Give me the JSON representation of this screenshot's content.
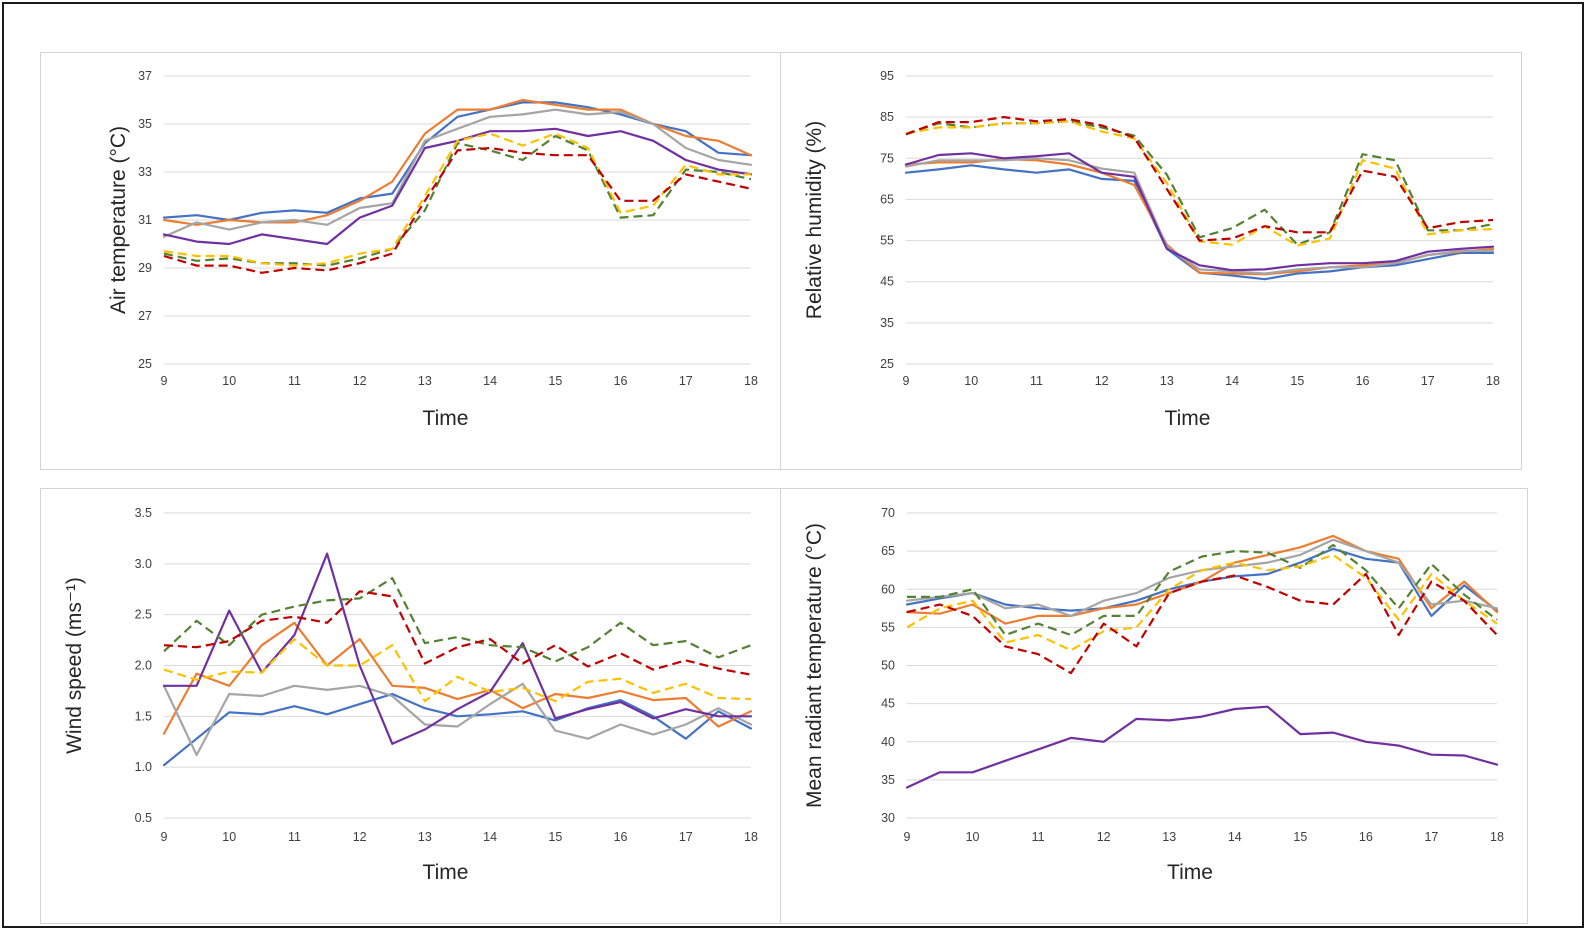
{
  "chart_data": [
    {
      "type": "line",
      "ylabel": "Air temperature (°C)",
      "xlabel": "Time",
      "ylim": [
        25,
        37
      ],
      "yticks": [
        "25",
        "27",
        "29",
        "31",
        "33",
        "35",
        "37"
      ],
      "xticks": [
        "9",
        "10",
        "11",
        "12",
        "13",
        "14",
        "15",
        "16",
        "17",
        "18"
      ],
      "x": [
        9,
        9.5,
        10,
        10.5,
        11,
        11.5,
        12,
        12.5,
        13,
        13.5,
        14,
        14.5,
        15,
        15.5,
        16,
        16.5,
        17,
        17.5,
        18
      ],
      "series": [
        {
          "name": "blue",
          "color": "#4472C4",
          "dashed": false,
          "values": [
            31.1,
            31.2,
            31.0,
            31.3,
            31.4,
            31.3,
            31.9,
            32.1,
            34.2,
            35.3,
            35.6,
            35.9,
            35.9,
            35.7,
            35.4,
            35.0,
            34.7,
            33.8,
            33.7
          ]
        },
        {
          "name": "orange",
          "color": "#ED7D31",
          "dashed": false,
          "values": [
            31.0,
            30.8,
            31.0,
            30.9,
            30.9,
            31.2,
            31.8,
            32.6,
            34.6,
            35.6,
            35.6,
            36.0,
            35.8,
            35.6,
            35.6,
            35.0,
            34.5,
            34.3,
            33.7
          ]
        },
        {
          "name": "gray",
          "color": "#A5A5A5",
          "dashed": false,
          "values": [
            30.3,
            30.9,
            30.6,
            30.9,
            31.0,
            30.8,
            31.5,
            31.7,
            34.3,
            34.8,
            35.3,
            35.4,
            35.6,
            35.4,
            35.5,
            35.0,
            34.0,
            33.5,
            33.3
          ]
        },
        {
          "name": "purple",
          "color": "#7030A0",
          "dashed": false,
          "values": [
            30.4,
            30.1,
            30.0,
            30.4,
            30.2,
            30.0,
            31.1,
            31.6,
            34.0,
            34.3,
            34.7,
            34.7,
            34.8,
            34.5,
            34.7,
            34.3,
            33.5,
            33.1,
            32.9
          ]
        },
        {
          "name": "green-dashed",
          "color": "#548235",
          "dashed": true,
          "values": [
            29.6,
            29.3,
            29.4,
            29.2,
            29.2,
            29.1,
            29.4,
            29.8,
            31.4,
            34.2,
            33.9,
            33.5,
            34.5,
            33.9,
            31.1,
            31.2,
            33.1,
            33.0,
            32.7
          ]
        },
        {
          "name": "yellow-dashed",
          "color": "#FFC000",
          "dashed": true,
          "values": [
            29.7,
            29.5,
            29.5,
            29.2,
            29.1,
            29.2,
            29.6,
            29.8,
            32.0,
            34.3,
            34.6,
            34.1,
            34.6,
            34.0,
            31.3,
            31.6,
            33.3,
            32.9,
            32.9
          ]
        },
        {
          "name": "red-dashed",
          "color": "#C00000",
          "dashed": true,
          "values": [
            29.5,
            29.1,
            29.1,
            28.8,
            29.0,
            28.9,
            29.2,
            29.6,
            31.8,
            33.9,
            34.0,
            33.8,
            33.7,
            33.7,
            31.8,
            31.8,
            32.9,
            32.6,
            32.3
          ]
        }
      ]
    },
    {
      "type": "line",
      "ylabel": "Relative humidity (%)",
      "xlabel": "Time",
      "ylim": [
        25,
        95
      ],
      "yticks": [
        "25",
        "35",
        "45",
        "55",
        "65",
        "75",
        "85",
        "95"
      ],
      "xticks": [
        "9",
        "10",
        "11",
        "12",
        "13",
        "14",
        "15",
        "16",
        "17",
        "18"
      ],
      "x": [
        9,
        9.5,
        10,
        10.5,
        11,
        11.5,
        12,
        12.5,
        13,
        13.5,
        14,
        14.5,
        15,
        15.5,
        16,
        16.5,
        17,
        17.5,
        18
      ],
      "series": [
        {
          "name": "blue",
          "color": "#4472C4",
          "dashed": false,
          "values": [
            71.5,
            72.3,
            73.3,
            72.3,
            71.5,
            72.3,
            70.0,
            69.5,
            53.0,
            47.2,
            46.5,
            45.6,
            47.0,
            47.5,
            48.5,
            49.0,
            50.5,
            52.0,
            52.0
          ]
        },
        {
          "name": "orange",
          "color": "#ED7D31",
          "dashed": false,
          "values": [
            73.5,
            74.0,
            74.0,
            74.8,
            74.5,
            73.5,
            71.5,
            68.5,
            54.0,
            47.2,
            47.0,
            46.8,
            47.5,
            48.5,
            49.0,
            49.5,
            51.5,
            52.3,
            53.0
          ]
        },
        {
          "name": "gray",
          "color": "#A5A5A5",
          "dashed": false,
          "values": [
            73.0,
            74.5,
            74.5,
            74.5,
            75.0,
            74.5,
            72.5,
            71.5,
            53.5,
            48.0,
            47.5,
            47.0,
            48.0,
            48.5,
            48.5,
            49.5,
            51.5,
            52.5,
            52.5
          ]
        },
        {
          "name": "purple",
          "color": "#7030A0",
          "dashed": false,
          "values": [
            73.5,
            75.8,
            76.2,
            75.0,
            75.5,
            76.2,
            71.5,
            70.5,
            53.0,
            49.0,
            47.8,
            48.0,
            49.0,
            49.5,
            49.5,
            50.0,
            52.3,
            53.0,
            53.5
          ]
        },
        {
          "name": "green-dashed",
          "color": "#548235",
          "dashed": true,
          "values": [
            81.0,
            83.5,
            82.5,
            83.5,
            83.5,
            84.0,
            82.5,
            80.5,
            71.0,
            55.8,
            58.0,
            62.5,
            54.0,
            57.0,
            76.0,
            74.5,
            57.5,
            57.5,
            59.0
          ]
        },
        {
          "name": "yellow-dashed",
          "color": "#FFC000",
          "dashed": true,
          "values": [
            81.0,
            82.5,
            82.5,
            83.5,
            83.5,
            84.0,
            81.5,
            79.8,
            69.0,
            54.8,
            54.0,
            58.5,
            53.8,
            55.5,
            74.5,
            72.5,
            56.5,
            57.5,
            57.8
          ]
        },
        {
          "name": "red-dashed",
          "color": "#C00000",
          "dashed": true,
          "values": [
            80.8,
            83.8,
            83.8,
            85.0,
            84.0,
            84.5,
            83.0,
            80.0,
            67.5,
            55.0,
            55.5,
            58.5,
            57.0,
            57.0,
            72.0,
            70.5,
            58.0,
            59.5,
            60.0
          ]
        }
      ]
    },
    {
      "type": "line",
      "ylabel": "Wind speed (ms⁻¹)",
      "xlabel": "Time",
      "ylim": [
        0.5,
        3.5
      ],
      "yticks": [
        "0.5",
        "1.0",
        "1.5",
        "2.0",
        "2.5",
        "3.0",
        "3.5"
      ],
      "xticks": [
        "9",
        "10",
        "11",
        "12",
        "13",
        "14",
        "15",
        "16",
        "17",
        "18"
      ],
      "x": [
        9,
        9.5,
        10,
        10.5,
        11,
        11.5,
        12,
        12.5,
        13,
        13.5,
        14,
        14.5,
        15,
        15.5,
        16,
        16.5,
        17,
        17.5,
        18
      ],
      "series": [
        {
          "name": "blue",
          "color": "#4472C4",
          "dashed": false,
          "values": [
            1.02,
            1.28,
            1.54,
            1.52,
            1.6,
            1.52,
            1.62,
            1.72,
            1.58,
            1.5,
            1.52,
            1.55,
            1.46,
            1.58,
            1.66,
            1.5,
            1.28,
            1.55,
            1.38
          ]
        },
        {
          "name": "orange",
          "color": "#ED7D31",
          "dashed": false,
          "values": [
            1.33,
            1.92,
            1.8,
            2.2,
            2.42,
            2.0,
            2.26,
            1.8,
            1.78,
            1.67,
            1.76,
            1.58,
            1.72,
            1.68,
            1.75,
            1.66,
            1.68,
            1.4,
            1.55
          ]
        },
        {
          "name": "gray",
          "color": "#A5A5A5",
          "dashed": false,
          "values": [
            1.8,
            1.12,
            1.72,
            1.7,
            1.8,
            1.76,
            1.8,
            1.7,
            1.42,
            1.4,
            1.62,
            1.82,
            1.36,
            1.28,
            1.42,
            1.32,
            1.42,
            1.58,
            1.42
          ]
        },
        {
          "name": "purple",
          "color": "#7030A0",
          "dashed": false,
          "values": [
            1.8,
            1.8,
            2.54,
            1.93,
            2.3,
            3.1,
            2.0,
            1.23,
            1.37,
            1.57,
            1.74,
            2.22,
            1.48,
            1.57,
            1.64,
            1.48,
            1.57,
            1.5,
            1.5
          ]
        },
        {
          "name": "green-dashed",
          "color": "#548235",
          "dashed": true,
          "values": [
            2.14,
            2.44,
            2.2,
            2.5,
            2.58,
            2.64,
            2.66,
            2.86,
            2.22,
            2.28,
            2.2,
            2.18,
            2.04,
            2.18,
            2.42,
            2.2,
            2.24,
            2.08,
            2.2
          ]
        },
        {
          "name": "yellow-dashed",
          "color": "#FFC000",
          "dashed": true,
          "values": [
            1.96,
            1.86,
            1.94,
            1.93,
            2.26,
            2.0,
            2.0,
            2.2,
            1.65,
            1.89,
            1.74,
            1.78,
            1.65,
            1.84,
            1.87,
            1.73,
            1.82,
            1.68,
            1.67
          ]
        },
        {
          "name": "red-dashed",
          "color": "#C00000",
          "dashed": true,
          "values": [
            2.2,
            2.18,
            2.24,
            2.44,
            2.48,
            2.42,
            2.73,
            2.68,
            2.02,
            2.18,
            2.26,
            2.02,
            2.2,
            1.99,
            2.12,
            1.96,
            2.05,
            1.97,
            1.91
          ]
        }
      ]
    },
    {
      "type": "line",
      "ylabel": "Mean radiant temperature (°C)",
      "xlabel": "Time",
      "ylim": [
        30,
        70
      ],
      "yticks": [
        "30",
        "35",
        "40",
        "45",
        "50",
        "55",
        "60",
        "65",
        "70"
      ],
      "xticks": [
        "9",
        "10",
        "11",
        "12",
        "13",
        "14",
        "15",
        "16",
        "17",
        "18"
      ],
      "x": [
        9,
        9.5,
        10,
        10.5,
        11,
        11.5,
        12,
        12.5,
        13,
        13.5,
        14,
        14.5,
        15,
        15.5,
        16,
        16.5,
        17,
        17.5,
        18
      ],
      "series": [
        {
          "name": "blue",
          "color": "#4472C4",
          "dashed": false,
          "values": [
            58.0,
            58.8,
            59.5,
            58.0,
            57.5,
            57.2,
            57.5,
            58.5,
            60.0,
            61.0,
            61.7,
            62.0,
            63.5,
            65.3,
            64.0,
            63.5,
            56.5,
            60.5,
            57.2
          ]
        },
        {
          "name": "orange",
          "color": "#ED7D31",
          "dashed": false,
          "values": [
            57.0,
            56.8,
            58.0,
            55.5,
            56.5,
            56.5,
            57.5,
            58.0,
            59.5,
            61.0,
            63.5,
            64.5,
            65.5,
            67.0,
            65.0,
            64.0,
            57.5,
            61.0,
            57.0
          ]
        },
        {
          "name": "gray",
          "color": "#A5A5A5",
          "dashed": false,
          "values": [
            58.5,
            59.0,
            59.5,
            57.5,
            58.0,
            56.5,
            58.5,
            59.5,
            61.5,
            62.5,
            63.0,
            63.5,
            64.5,
            66.5,
            65.0,
            63.5,
            58.0,
            58.5,
            57.5
          ]
        },
        {
          "name": "purple",
          "color": "#7030A0",
          "dashed": false,
          "values": [
            34.0,
            36.0,
            36.0,
            37.5,
            39.0,
            40.5,
            40.0,
            43.0,
            42.8,
            43.3,
            44.3,
            44.6,
            41.0,
            41.2,
            40.0,
            39.5,
            38.3,
            38.2,
            37.0
          ]
        },
        {
          "name": "green-dashed",
          "color": "#548235",
          "dashed": true,
          "values": [
            59.0,
            59.0,
            60.0,
            54.0,
            55.5,
            54.0,
            56.5,
            56.5,
            62.3,
            64.3,
            65.0,
            64.8,
            62.8,
            65.8,
            62.5,
            57.5,
            63.3,
            59.3,
            56.0
          ]
        },
        {
          "name": "yellow-dashed",
          "color": "#FFC000",
          "dashed": true,
          "values": [
            55.0,
            57.5,
            58.5,
            53.0,
            54.0,
            52.0,
            54.5,
            55.0,
            60.0,
            62.5,
            63.5,
            62.5,
            63.0,
            64.5,
            61.5,
            56.0,
            62.0,
            58.5,
            55.5
          ]
        },
        {
          "name": "red-dashed",
          "color": "#C00000",
          "dashed": true,
          "values": [
            57.0,
            58.0,
            56.5,
            52.5,
            51.5,
            49.0,
            55.5,
            52.5,
            59.5,
            61.0,
            61.8,
            60.3,
            58.5,
            58.0,
            62.0,
            54.0,
            61.0,
            58.5,
            54.0
          ]
        }
      ]
    }
  ]
}
